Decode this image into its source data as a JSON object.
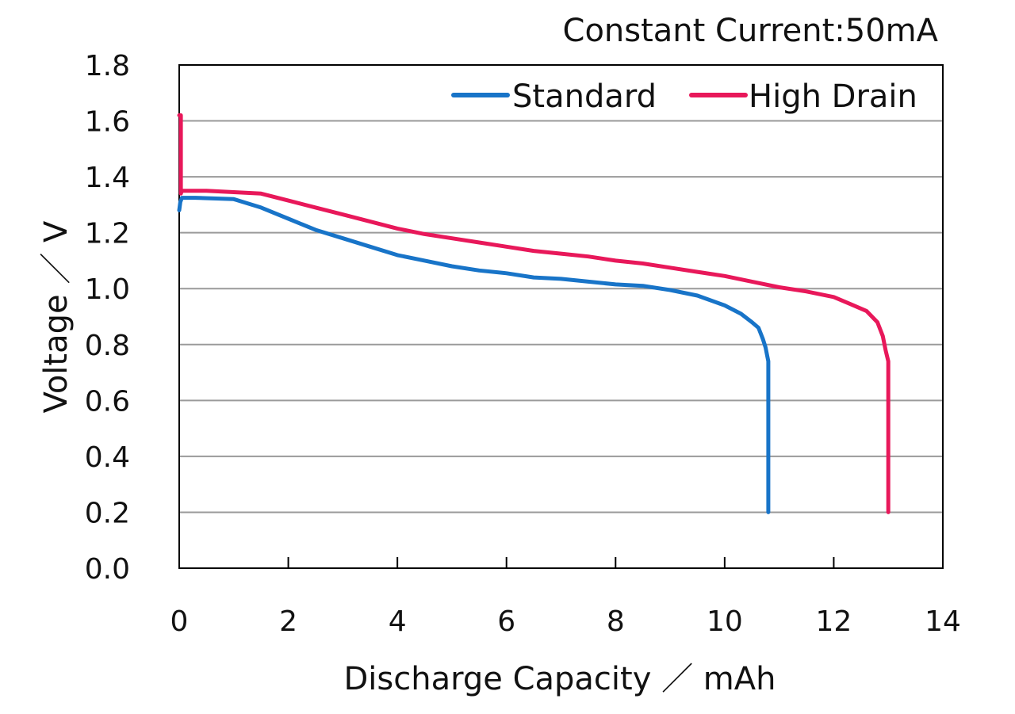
{
  "chart_data": {
    "type": "line",
    "title": "",
    "annotation": "Constant Current:50mA",
    "xlabel": "Discharge Capacity ／ mAh",
    "ylabel": "Voltage ／ V",
    "xlim": [
      0,
      14
    ],
    "ylim": [
      0.0,
      1.8
    ],
    "x_ticks": [
      0,
      2,
      4,
      6,
      8,
      10,
      12,
      14
    ],
    "y_ticks": [
      0.0,
      0.2,
      0.4,
      0.6,
      0.8,
      1.0,
      1.2,
      1.4,
      1.6,
      1.8
    ],
    "x_tick_labels": [
      "0",
      "2",
      "4",
      "6",
      "8",
      "10",
      "12",
      "14"
    ],
    "y_tick_labels": [
      "0.0",
      "0.2",
      "0.4",
      "0.6",
      "0.8",
      "1.0",
      "1.2",
      "1.4",
      "1.6",
      "1.8"
    ],
    "grid": "horizontal",
    "legend_position": "top-right",
    "series": [
      {
        "name": "Standard",
        "color": "#1874c8",
        "x": [
          0.0,
          0.02,
          0.05,
          0.3,
          1.0,
          1.5,
          2.0,
          2.5,
          3.0,
          3.5,
          4.0,
          4.5,
          5.0,
          5.5,
          6.0,
          6.5,
          7.0,
          7.5,
          8.0,
          8.5,
          9.0,
          9.5,
          10.0,
          10.3,
          10.5,
          10.62,
          10.7,
          10.75,
          10.78,
          10.8,
          10.8,
          10.8
        ],
        "y": [
          1.28,
          1.31,
          1.325,
          1.325,
          1.32,
          1.29,
          1.25,
          1.21,
          1.18,
          1.15,
          1.12,
          1.1,
          1.08,
          1.065,
          1.055,
          1.04,
          1.035,
          1.025,
          1.015,
          1.01,
          0.995,
          0.975,
          0.94,
          0.91,
          0.88,
          0.86,
          0.82,
          0.79,
          0.76,
          0.74,
          0.4,
          0.2
        ]
      },
      {
        "name": "High Drain",
        "color": "#e8185a",
        "x": [
          0.0,
          0.03,
          0.03,
          0.05,
          0.1,
          0.5,
          1.0,
          1.5,
          2.0,
          2.5,
          3.0,
          3.5,
          4.0,
          4.5,
          5.0,
          5.5,
          6.0,
          6.5,
          7.0,
          7.5,
          8.0,
          8.5,
          9.0,
          9.5,
          10.0,
          10.5,
          11.0,
          11.5,
          12.0,
          12.3,
          12.6,
          12.8,
          12.9,
          12.95,
          13.0,
          13.0,
          13.0
        ],
        "y": [
          1.62,
          1.62,
          1.34,
          1.35,
          1.35,
          1.35,
          1.345,
          1.34,
          1.315,
          1.29,
          1.265,
          1.24,
          1.215,
          1.195,
          1.18,
          1.165,
          1.15,
          1.135,
          1.125,
          1.115,
          1.1,
          1.09,
          1.075,
          1.06,
          1.045,
          1.025,
          1.005,
          0.99,
          0.97,
          0.945,
          0.92,
          0.88,
          0.83,
          0.78,
          0.74,
          0.4,
          0.2
        ]
      }
    ]
  }
}
